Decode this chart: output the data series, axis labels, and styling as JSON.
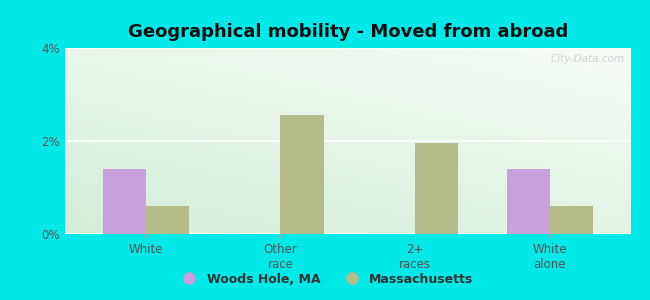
{
  "title": "Geographical mobility - Moved from abroad",
  "categories": [
    "White",
    "Other\nrace",
    "2+\nraces",
    "White\nalone"
  ],
  "woods_hole": [
    1.4,
    0.0,
    0.0,
    1.4
  ],
  "massachusetts": [
    0.6,
    2.55,
    1.95,
    0.6
  ],
  "woods_hole_color": "#c9a0dc",
  "massachusetts_color": "#b5bc8a",
  "ylim": [
    0,
    4
  ],
  "yticks": [
    0,
    2,
    4
  ],
  "ytick_labels": [
    "0%",
    "2%",
    "4%"
  ],
  "background_color": "#00e8e8",
  "plot_bg_topleft": "#cce8d8",
  "plot_bg_bottomright": "#f8fdf8",
  "title_fontsize": 13,
  "bar_width": 0.32,
  "legend_labels": [
    "Woods Hole, MA",
    "Massachusetts"
  ],
  "watermark": "City-Data.com"
}
